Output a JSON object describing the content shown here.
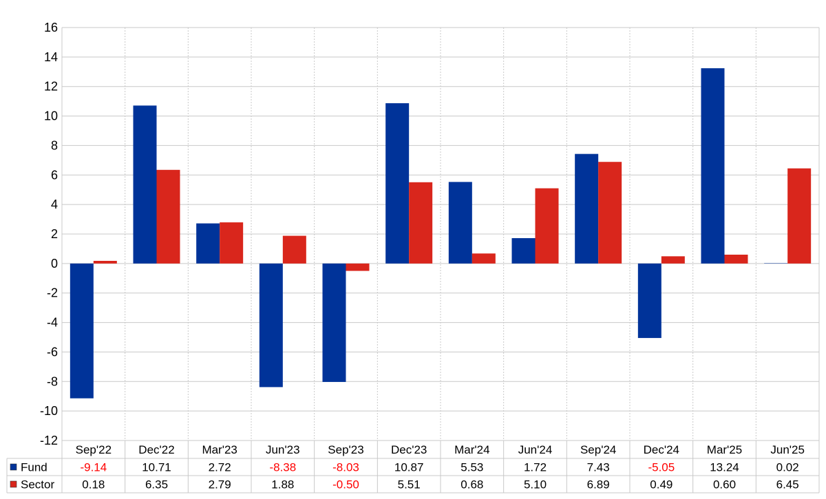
{
  "chart_data": {
    "type": "bar",
    "categories": [
      "Sep'22",
      "Dec'22",
      "Mar'23",
      "Jun'23",
      "Sep'23",
      "Dec'23",
      "Mar'24",
      "Jun'24",
      "Sep'24",
      "Dec'24",
      "Mar'25",
      "Jun'25"
    ],
    "series": [
      {
        "name": "Fund",
        "color": "#003399",
        "values": [
          -9.14,
          10.71,
          2.72,
          -8.38,
          -8.03,
          10.87,
          5.53,
          1.72,
          7.43,
          -5.05,
          13.24,
          0.02
        ],
        "labels": [
          "-9.14",
          "10.71",
          "2.72",
          "-8.38",
          "-8.03",
          "10.87",
          "5.53",
          "1.72",
          "7.43",
          "-5.05",
          "13.24",
          "0.02"
        ]
      },
      {
        "name": "Sector",
        "color": "#d9261c",
        "values": [
          0.18,
          6.35,
          2.79,
          1.88,
          -0.5,
          5.51,
          0.68,
          5.1,
          6.89,
          0.49,
          0.6,
          6.45
        ],
        "labels": [
          "0.18",
          "6.35",
          "2.79",
          "1.88",
          "-0.50",
          "5.51",
          "0.68",
          "5.10",
          "6.89",
          "0.49",
          "0.60",
          "6.45"
        ]
      }
    ],
    "ylim": [
      -12,
      16
    ],
    "yticks": [
      "-12",
      "-10",
      "-8",
      "-6",
      "-4",
      "-2",
      "0",
      "2",
      "4",
      "6",
      "8",
      "10",
      "12",
      "14",
      "16"
    ],
    "title": "",
    "xlabel": "",
    "ylabel": "",
    "grid": true,
    "legend": "data-table-bottom",
    "negative_value_color": "#ff0000",
    "grid_color": "#c8c8c8",
    "text_color": "#000000"
  }
}
